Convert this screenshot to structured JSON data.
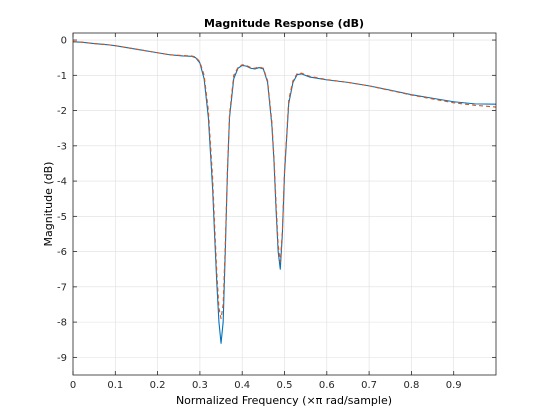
{
  "chart_data": {
    "type": "line",
    "title": "Magnitude Response (dB)",
    "xlabel": "Normalized Frequency (×π rad/sample)",
    "ylabel": "Magnitude (dB)",
    "xlim": [
      0,
      1
    ],
    "ylim": [
      -9.5,
      0.2
    ],
    "grid": true,
    "xticks": [
      0,
      0.1,
      0.2,
      0.3,
      0.4,
      0.5,
      0.6,
      0.7,
      0.8,
      0.9
    ],
    "xticklabels": [
      "0",
      "0.1",
      "0.2",
      "0.3",
      "0.4",
      "0.5",
      "0.6",
      "0.7",
      "0.8",
      "0.9"
    ],
    "yticks": [
      0,
      -1,
      -2,
      -3,
      -4,
      -5,
      -6,
      -7,
      -8,
      -9
    ],
    "yticklabels": [
      "0",
      "-1",
      "-2",
      "-3",
      "-4",
      "-5",
      "-6",
      "-7",
      "-8",
      "-9"
    ],
    "series": [
      {
        "color": "#0072bd",
        "style": "solid",
        "x": [
          0,
          0.02,
          0.05,
          0.08,
          0.1,
          0.13,
          0.16,
          0.2,
          0.23,
          0.26,
          0.28,
          0.29,
          0.3,
          0.31,
          0.32,
          0.33,
          0.335,
          0.34,
          0.345,
          0.35,
          0.355,
          0.36,
          0.365,
          0.37,
          0.38,
          0.39,
          0.4,
          0.41,
          0.42,
          0.43,
          0.44,
          0.45,
          0.46,
          0.47,
          0.475,
          0.48,
          0.485,
          0.49,
          0.495,
          0.5,
          0.51,
          0.52,
          0.53,
          0.54,
          0.56,
          0.6,
          0.65,
          0.7,
          0.75,
          0.8,
          0.85,
          0.9,
          0.95,
          1.0
        ],
        "y": [
          -0.05,
          -0.06,
          -0.1,
          -0.13,
          -0.16,
          -0.22,
          -0.28,
          -0.36,
          -0.42,
          -0.45,
          -0.46,
          -0.5,
          -0.65,
          -1.1,
          -2.2,
          -4.2,
          -5.6,
          -6.9,
          -8.0,
          -8.6,
          -8.0,
          -6.0,
          -3.8,
          -2.2,
          -1.1,
          -0.8,
          -0.72,
          -0.74,
          -0.8,
          -0.82,
          -0.78,
          -0.82,
          -1.2,
          -2.4,
          -3.4,
          -4.8,
          -6.0,
          -6.5,
          -5.5,
          -3.8,
          -1.8,
          -1.2,
          -0.98,
          -0.96,
          -1.05,
          -1.13,
          -1.2,
          -1.3,
          -1.42,
          -1.55,
          -1.65,
          -1.75,
          -1.81,
          -1.82
        ]
      },
      {
        "color": "#d95319",
        "style": "dashed",
        "x": [
          0,
          0.02,
          0.05,
          0.08,
          0.1,
          0.13,
          0.16,
          0.2,
          0.23,
          0.26,
          0.28,
          0.29,
          0.3,
          0.31,
          0.32,
          0.33,
          0.335,
          0.34,
          0.345,
          0.35,
          0.355,
          0.36,
          0.365,
          0.37,
          0.38,
          0.39,
          0.4,
          0.41,
          0.42,
          0.43,
          0.44,
          0.45,
          0.46,
          0.47,
          0.475,
          0.48,
          0.485,
          0.49,
          0.495,
          0.5,
          0.51,
          0.52,
          0.53,
          0.54,
          0.56,
          0.6,
          0.65,
          0.7,
          0.75,
          0.8,
          0.85,
          0.9,
          0.95,
          1.0
        ],
        "y": [
          -0.04,
          -0.06,
          -0.1,
          -0.13,
          -0.16,
          -0.22,
          -0.28,
          -0.36,
          -0.42,
          -0.44,
          -0.45,
          -0.48,
          -0.62,
          -1.0,
          -2.0,
          -3.9,
          -5.3,
          -6.6,
          -7.6,
          -7.9,
          -7.5,
          -5.8,
          -3.7,
          -2.1,
          -1.0,
          -0.78,
          -0.7,
          -0.72,
          -0.78,
          -0.8,
          -0.76,
          -0.8,
          -1.15,
          -2.3,
          -3.3,
          -4.6,
          -5.8,
          -6.3,
          -5.4,
          -3.7,
          -1.7,
          -1.15,
          -0.95,
          -0.94,
          -1.03,
          -1.12,
          -1.2,
          -1.3,
          -1.43,
          -1.56,
          -1.67,
          -1.78,
          -1.85,
          -1.9
        ]
      }
    ]
  }
}
